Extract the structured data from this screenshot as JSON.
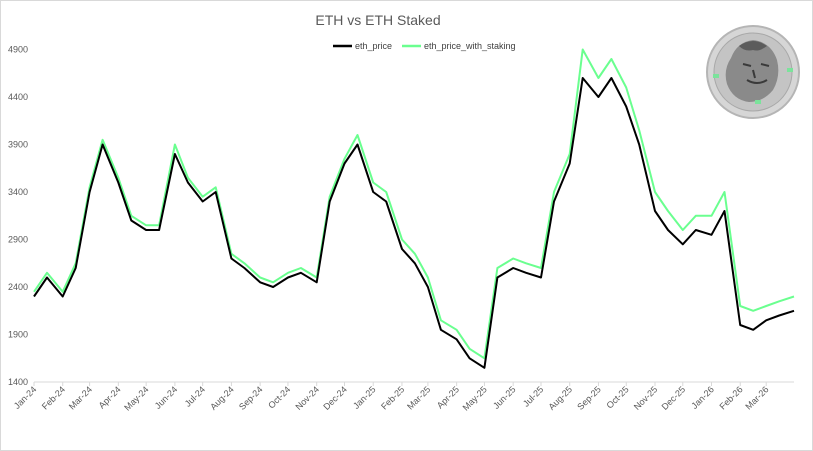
{
  "chart_data": {
    "type": "line",
    "title": "ETH vs ETH Staked",
    "xlabel": "",
    "ylabel": "",
    "ylim": [
      1400,
      5200
    ],
    "yticks": [
      1400,
      1900,
      2400,
      2900,
      3400,
      3900,
      4400,
      4900
    ],
    "x_tick_labels": [
      "Jan-24",
      "Feb-24",
      "Mar-24",
      "Apr-24",
      "May-24",
      "Jun-24",
      "Jul-24",
      "Aug-24",
      "Sep-24",
      "Oct-24",
      "Nov-24",
      "Dec-24",
      "Jan-25",
      "Feb-25",
      "Mar-25",
      "Apr-25",
      "May-25",
      "Jun-25",
      "Jul-25",
      "Aug-25",
      "Sep-25",
      "Oct-25",
      "Nov-25",
      "Dec-25",
      "Jan-26",
      "Feb-26",
      "Mar-26"
    ],
    "x": [
      "2024-01-01",
      "2024-01-15",
      "2024-02-01",
      "2024-02-15",
      "2024-03-01",
      "2024-03-15",
      "2024-04-01",
      "2024-04-15",
      "2024-05-01",
      "2024-05-15",
      "2024-06-01",
      "2024-06-15",
      "2024-07-01",
      "2024-07-15",
      "2024-08-01",
      "2024-08-15",
      "2024-09-01",
      "2024-09-15",
      "2024-10-01",
      "2024-10-15",
      "2024-11-01",
      "2024-11-15",
      "2024-12-01",
      "2024-12-15",
      "2025-01-01",
      "2025-01-15",
      "2025-02-01",
      "2025-02-15",
      "2025-03-01",
      "2025-03-15",
      "2025-04-01",
      "2025-04-15",
      "2025-05-01",
      "2025-05-15",
      "2025-06-01",
      "2025-06-15",
      "2025-07-01",
      "2025-07-15",
      "2025-08-01",
      "2025-08-15",
      "2025-09-01",
      "2025-09-15",
      "2025-10-01",
      "2025-10-15",
      "2025-11-01",
      "2025-11-15",
      "2025-12-01",
      "2025-12-15",
      "2026-01-01",
      "2026-01-15",
      "2026-02-01",
      "2026-02-15",
      "2026-03-01",
      "2026-03-15",
      "2026-03-31"
    ],
    "series": [
      {
        "name": "eth_price",
        "color": "#000000",
        "values": [
          2300,
          2500,
          2300,
          2600,
          3400,
          3900,
          3500,
          3100,
          3000,
          3000,
          3800,
          3500,
          3300,
          3400,
          2700,
          2600,
          2450,
          2400,
          2500,
          2550,
          2450,
          3300,
          3700,
          3900,
          3400,
          3300,
          2800,
          2650,
          2400,
          1950,
          1850,
          1650,
          1550,
          2500,
          2600,
          2550,
          2500,
          3300,
          3700,
          4600,
          4400,
          4600,
          4300,
          3900,
          3200,
          3000,
          2850,
          3000,
          2950,
          3200,
          2000,
          1950,
          2050,
          2100,
          2150
        ]
      },
      {
        "name": "eth_price_with_staking",
        "color": "#6aff8f",
        "values": [
          2350,
          2550,
          2350,
          2650,
          3450,
          3950,
          3550,
          3150,
          3050,
          3050,
          3900,
          3550,
          3350,
          3450,
          2750,
          2650,
          2500,
          2450,
          2550,
          2600,
          2500,
          3350,
          3750,
          4000,
          3500,
          3400,
          2900,
          2750,
          2500,
          2050,
          1950,
          1750,
          1650,
          2600,
          2700,
          2650,
          2600,
          3400,
          3800,
          4900,
          4600,
          4800,
          4500,
          4050,
          3400,
          3200,
          3000,
          3150,
          3150,
          3400,
          2200,
          2150,
          2200,
          2250,
          2300
        ]
      }
    ],
    "legend_position": "top-center",
    "grid": false
  }
}
